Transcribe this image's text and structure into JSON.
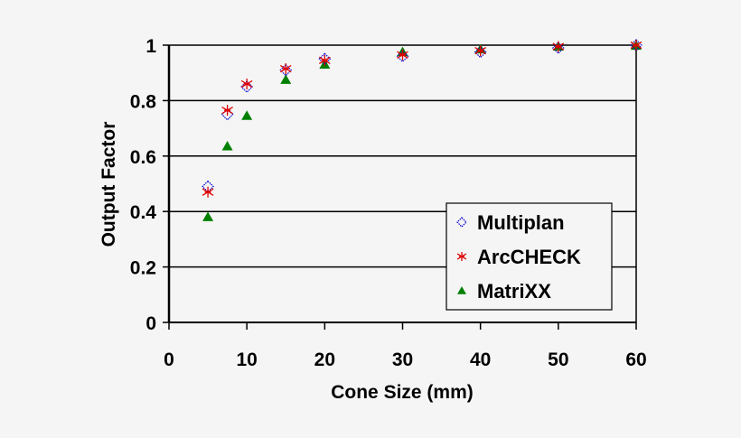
{
  "chart_data": {
    "type": "scatter",
    "title": "",
    "xlabel": "Cone Size (mm)",
    "ylabel": "Output Factor",
    "xlim": [
      0,
      60
    ],
    "ylim": [
      0,
      1
    ],
    "xticks": [
      0,
      10,
      20,
      30,
      40,
      50,
      60
    ],
    "xtick_labels": [
      "0",
      "10",
      "20",
      "30",
      "40",
      "50",
      "60"
    ],
    "yticks": [
      0,
      0.2,
      0.4,
      0.6,
      0.8,
      1
    ],
    "ytick_labels": [
      "0",
      "0.2",
      "0.4",
      "0.6",
      "0.8",
      "1"
    ],
    "grid": "horizontal",
    "legend_position": "lower right (inside plot)",
    "series": [
      {
        "name": "Multiplan",
        "marker": "diamond-open",
        "color": "#0000cc",
        "x": [
          5,
          7.5,
          10,
          15,
          20,
          30,
          40,
          50,
          60
        ],
        "y": [
          0.49,
          0.75,
          0.85,
          0.91,
          0.95,
          0.96,
          0.975,
          0.99,
          1.0
        ]
      },
      {
        "name": "ArcCHECK",
        "marker": "asterisk",
        "color": "#e00000",
        "x": [
          5,
          7.5,
          10,
          15,
          20,
          30,
          40,
          50,
          60
        ],
        "y": [
          0.47,
          0.765,
          0.86,
          0.915,
          0.945,
          0.965,
          0.98,
          0.995,
          1.0
        ]
      },
      {
        "name": "MatriXX",
        "marker": "triangle-filled",
        "color": "#008000",
        "x": [
          5,
          7.5,
          10,
          15,
          20,
          30,
          40,
          50,
          60
        ],
        "y": [
          0.38,
          0.635,
          0.745,
          0.875,
          0.93,
          0.975,
          0.985,
          0.995,
          0.998
        ]
      }
    ]
  },
  "colors": {
    "background": "#f5f5f5",
    "axis": "#000000",
    "grid": "#000000"
  }
}
